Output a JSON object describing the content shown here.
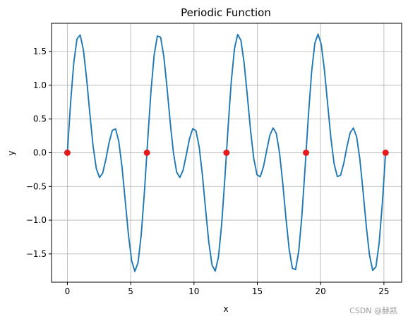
{
  "chart_data": {
    "type": "line",
    "title": "Periodic Function",
    "xlabel": "x",
    "ylabel": "y",
    "xlim": [
      -1.25,
      26.4
    ],
    "ylim": [
      -1.92,
      1.92
    ],
    "xticks": [
      0,
      5,
      10,
      15,
      20,
      25
    ],
    "xtick_labels": [
      "0",
      "5",
      "10",
      "15",
      "20",
      "25"
    ],
    "yticks": [
      -1.5,
      -1.0,
      -0.5,
      0.0,
      0.5,
      1.0,
      1.5
    ],
    "ytick_labels": [
      "−1.5",
      "−1.0",
      "−0.5",
      "0.0",
      "0.5",
      "1.0",
      "1.5"
    ],
    "grid": true,
    "series": [
      {
        "values_formula": "sin(x) + sin(2x)",
        "x_range": [
          0,
          25.13
        ],
        "color": "#1f77b4",
        "style": "line"
      },
      {
        "x": [
          0,
          6.283,
          12.566,
          18.85,
          25.133
        ],
        "y": [
          0,
          0,
          0,
          0,
          0
        ],
        "color": "#e41a1c",
        "style": "scatter"
      }
    ]
  },
  "watermark": "CSDN @赫凯"
}
